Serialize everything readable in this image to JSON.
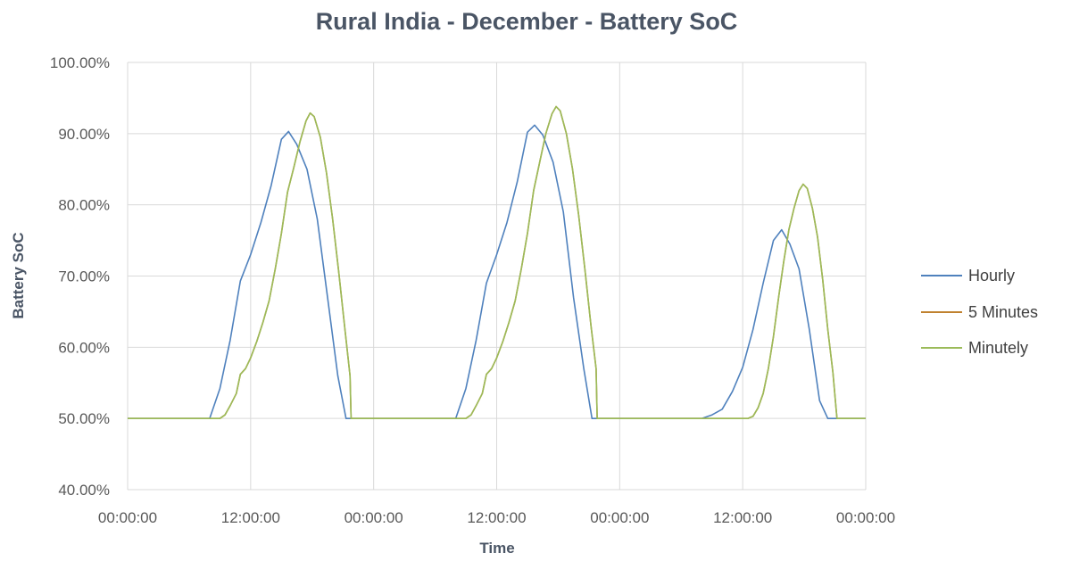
{
  "chart_data": {
    "type": "line",
    "title": "Rural India - December - Battery SoC",
    "xlabel": "Time",
    "ylabel": "Battery SoC",
    "ylim": [
      40,
      100
    ],
    "y_ticks": [
      40,
      50,
      60,
      70,
      80,
      90,
      100
    ],
    "y_tick_labels": [
      "40.00%",
      "50.00%",
      "60.00%",
      "70.00%",
      "80.00%",
      "90.00%",
      "100.00%"
    ],
    "xlim": [
      0,
      72
    ],
    "x_unit": "hours",
    "x_ticks": [
      0,
      12,
      24,
      36,
      48,
      60,
      72
    ],
    "x_tick_labels": [
      "00:00:00",
      "12:00:00",
      "00:00:00",
      "12:00:00",
      "00:00:00",
      "12:00:00",
      "00:00:00"
    ],
    "grid": true,
    "legend_position": "right",
    "series": [
      {
        "name": "Hourly",
        "color": "#4f81bd",
        "points": [
          [
            0,
            50
          ],
          [
            8,
            50
          ],
          [
            9,
            54.2
          ],
          [
            10,
            61
          ],
          [
            11,
            69.3
          ],
          [
            12,
            73
          ],
          [
            13,
            77.5
          ],
          [
            14,
            82.7
          ],
          [
            15,
            89.2
          ],
          [
            15.7,
            90.3
          ],
          [
            16.5,
            88.5
          ],
          [
            17.5,
            85
          ],
          [
            18.5,
            78
          ],
          [
            19.5,
            67
          ],
          [
            20.5,
            56
          ],
          [
            21.3,
            50
          ],
          [
            24,
            50
          ],
          [
            32,
            50
          ],
          [
            33,
            54.2
          ],
          [
            34,
            61
          ],
          [
            35,
            69
          ],
          [
            36,
            73
          ],
          [
            37,
            77.5
          ],
          [
            38,
            83.2
          ],
          [
            39,
            90.2
          ],
          [
            39.7,
            91.2
          ],
          [
            40.5,
            89.8
          ],
          [
            41.5,
            86
          ],
          [
            42.5,
            79
          ],
          [
            43.5,
            67
          ],
          [
            44.5,
            57
          ],
          [
            45.3,
            50
          ],
          [
            48,
            50
          ],
          [
            56,
            50
          ],
          [
            57,
            50.5
          ],
          [
            58,
            51.3
          ],
          [
            59,
            53.8
          ],
          [
            60,
            57.2
          ],
          [
            61,
            62.5
          ],
          [
            62,
            69
          ],
          [
            63,
            75
          ],
          [
            63.8,
            76.5
          ],
          [
            64.6,
            74.5
          ],
          [
            65.5,
            71
          ],
          [
            66.5,
            62.5
          ],
          [
            67.5,
            52.5
          ],
          [
            68.3,
            50
          ],
          [
            72,
            50
          ]
        ]
      },
      {
        "name": "5 Minutes",
        "color": "#c0812f",
        "points": [
          [
            0,
            50
          ],
          [
            9,
            50
          ],
          [
            9.5,
            50.5
          ],
          [
            10,
            51.8
          ],
          [
            10.6,
            53.5
          ],
          [
            11,
            56.2
          ],
          [
            11.5,
            57
          ],
          [
            12,
            58.5
          ],
          [
            12.6,
            60.8
          ],
          [
            13.2,
            63.5
          ],
          [
            13.8,
            66.5
          ],
          [
            14.4,
            71
          ],
          [
            15,
            76
          ],
          [
            15.6,
            81.8
          ],
          [
            16.2,
            85.2
          ],
          [
            16.8,
            88.8
          ],
          [
            17.4,
            91.8
          ],
          [
            17.8,
            92.9
          ],
          [
            18.2,
            92.4
          ],
          [
            18.8,
            89.5
          ],
          [
            19.4,
            84.5
          ],
          [
            20,
            78
          ],
          [
            20.6,
            70.5
          ],
          [
            21.2,
            62.5
          ],
          [
            21.7,
            56
          ],
          [
            21.8,
            50
          ],
          [
            24,
            50
          ],
          [
            33,
            50
          ],
          [
            33.5,
            50.5
          ],
          [
            34,
            51.8
          ],
          [
            34.6,
            53.5
          ],
          [
            35,
            56.2
          ],
          [
            35.5,
            57
          ],
          [
            36,
            58.5
          ],
          [
            36.6,
            60.8
          ],
          [
            37.2,
            63.5
          ],
          [
            37.8,
            66.5
          ],
          [
            38.4,
            71
          ],
          [
            39,
            76
          ],
          [
            39.6,
            82
          ],
          [
            40.2,
            86
          ],
          [
            40.8,
            90
          ],
          [
            41.4,
            92.8
          ],
          [
            41.8,
            93.8
          ],
          [
            42.2,
            93.2
          ],
          [
            42.8,
            90
          ],
          [
            43.4,
            85
          ],
          [
            44,
            78.5
          ],
          [
            44.6,
            71
          ],
          [
            45.2,
            63
          ],
          [
            45.7,
            57
          ],
          [
            45.8,
            50
          ],
          [
            48,
            50
          ],
          [
            60.5,
            50
          ],
          [
            61,
            50.3
          ],
          [
            61.5,
            51.5
          ],
          [
            62,
            53.5
          ],
          [
            62.5,
            57
          ],
          [
            63,
            61.5
          ],
          [
            63.5,
            67
          ],
          [
            64,
            72
          ],
          [
            64.5,
            76.5
          ],
          [
            65,
            79.5
          ],
          [
            65.5,
            82
          ],
          [
            65.9,
            82.9
          ],
          [
            66.3,
            82.3
          ],
          [
            66.8,
            79.5
          ],
          [
            67.3,
            75.5
          ],
          [
            67.8,
            69.5
          ],
          [
            68.3,
            62.5
          ],
          [
            68.8,
            56.5
          ],
          [
            69.1,
            51.5
          ],
          [
            69.2,
            50
          ],
          [
            72,
            50
          ]
        ]
      },
      {
        "name": "Minutely",
        "color": "#9bbb59",
        "points": [
          [
            0,
            50
          ],
          [
            9,
            50
          ],
          [
            9.5,
            50.5
          ],
          [
            10,
            51.8
          ],
          [
            10.6,
            53.5
          ],
          [
            11,
            56.2
          ],
          [
            11.5,
            57
          ],
          [
            12,
            58.5
          ],
          [
            12.6,
            60.8
          ],
          [
            13.2,
            63.5
          ],
          [
            13.8,
            66.5
          ],
          [
            14.4,
            71
          ],
          [
            15,
            76
          ],
          [
            15.6,
            81.8
          ],
          [
            16.2,
            85.2
          ],
          [
            16.8,
            88.8
          ],
          [
            17.4,
            91.8
          ],
          [
            17.8,
            92.9
          ],
          [
            18.2,
            92.4
          ],
          [
            18.8,
            89.5
          ],
          [
            19.4,
            84.5
          ],
          [
            20,
            78
          ],
          [
            20.6,
            70.5
          ],
          [
            21.2,
            62.5
          ],
          [
            21.7,
            56
          ],
          [
            21.8,
            50
          ],
          [
            24,
            50
          ],
          [
            33,
            50
          ],
          [
            33.5,
            50.5
          ],
          [
            34,
            51.8
          ],
          [
            34.6,
            53.5
          ],
          [
            35,
            56.2
          ],
          [
            35.5,
            57
          ],
          [
            36,
            58.5
          ],
          [
            36.6,
            60.8
          ],
          [
            37.2,
            63.5
          ],
          [
            37.8,
            66.5
          ],
          [
            38.4,
            71
          ],
          [
            39,
            76
          ],
          [
            39.6,
            82
          ],
          [
            40.2,
            86
          ],
          [
            40.8,
            90
          ],
          [
            41.4,
            92.8
          ],
          [
            41.8,
            93.8
          ],
          [
            42.2,
            93.2
          ],
          [
            42.8,
            90
          ],
          [
            43.4,
            85
          ],
          [
            44,
            78.5
          ],
          [
            44.6,
            71
          ],
          [
            45.2,
            63
          ],
          [
            45.7,
            57
          ],
          [
            45.8,
            50
          ],
          [
            48,
            50
          ],
          [
            60.5,
            50
          ],
          [
            61,
            50.3
          ],
          [
            61.5,
            51.5
          ],
          [
            62,
            53.5
          ],
          [
            62.5,
            57
          ],
          [
            63,
            61.5
          ],
          [
            63.5,
            67
          ],
          [
            64,
            72
          ],
          [
            64.5,
            76.5
          ],
          [
            65,
            79.5
          ],
          [
            65.5,
            82
          ],
          [
            65.9,
            82.9
          ],
          [
            66.3,
            82.3
          ],
          [
            66.8,
            79.5
          ],
          [
            67.3,
            75.5
          ],
          [
            67.8,
            69.5
          ],
          [
            68.3,
            62.5
          ],
          [
            68.8,
            56.5
          ],
          [
            69.1,
            51.5
          ],
          [
            69.2,
            50
          ],
          [
            72,
            50
          ]
        ]
      }
    ]
  }
}
